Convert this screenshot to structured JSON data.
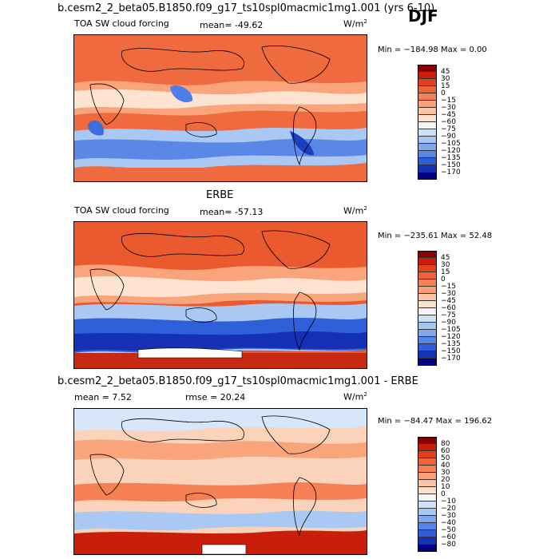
{
  "season": "DJF",
  "panels": [
    {
      "id": "model",
      "title": "b.cesm2_2_beta05.B1850.f09_g17_ts10spl0macmic1mg1.001 (yrs 6-10)",
      "field": "TOA SW cloud forcing",
      "stat1": "mean=  -49.62",
      "stat2": "",
      "units": "W/m",
      "units_sup": "2",
      "minmax": "Min = −184.98  Max =    0.00",
      "levels": [
        "45",
        "30",
        "15",
        "0",
        "−15",
        "−30",
        "−45",
        "−60",
        "−75",
        "−90",
        "−105",
        "−120",
        "−135",
        "−150",
        "−170"
      ],
      "colors": [
        "#8b0000",
        "#c81e0a",
        "#e3401c",
        "#f06335",
        "#f58054",
        "#f9a079",
        "#fbc2a3",
        "#fde0cc",
        "#f5f5f5",
        "#cfe1f7",
        "#a7c7f3",
        "#7fa8ee",
        "#5886e8",
        "#2d5ed8",
        "#1433b8",
        "#000080"
      ]
    },
    {
      "id": "obs",
      "title": "ERBE",
      "field": "TOA SW cloud forcing",
      "stat1": "mean=  -57.13",
      "stat2": "",
      "units": "W/m",
      "units_sup": "2",
      "minmax": "Min = −235.61  Max =  52.48",
      "levels": [
        "45",
        "30",
        "15",
        "0",
        "−15",
        "−30",
        "−45",
        "−60",
        "−75",
        "−90",
        "−105",
        "−120",
        "−135",
        "−150",
        "−170"
      ],
      "colors": [
        "#8b0000",
        "#c81e0a",
        "#e3401c",
        "#f06335",
        "#f58054",
        "#f9a079",
        "#fbc2a3",
        "#fde0cc",
        "#f5f5f5",
        "#cfe1f7",
        "#a7c7f3",
        "#7fa8ee",
        "#5886e8",
        "#2d5ed8",
        "#1433b8",
        "#000080"
      ]
    },
    {
      "id": "diff",
      "title": "b.cesm2_2_beta05.B1850.f09_g17_ts10spl0macmic1mg1.001 - ERBE",
      "field": "",
      "stat1": "mean =    7.52",
      "stat2": "rmse =   20.24",
      "units": "W/m",
      "units_sup": "2",
      "minmax": "Min = −84.47  Max = 196.62",
      "levels": [
        "80",
        "60",
        "50",
        "40",
        "30",
        "20",
        "10",
        "0",
        "−10",
        "−20",
        "−30",
        "−40",
        "−50",
        "−60",
        "−80"
      ],
      "colors": [
        "#8b0000",
        "#c81e0a",
        "#e3401c",
        "#f06335",
        "#f58054",
        "#f9a079",
        "#fbc2a3",
        "#fde0cc",
        "#f5f5f5",
        "#cfe1f7",
        "#a7c7f3",
        "#7fa8ee",
        "#5886e8",
        "#2d5ed8",
        "#1433b8",
        "#000080"
      ]
    }
  ],
  "chart_data": [
    {
      "type": "heatmap",
      "title": "b.cesm2_2_beta05.B1850.f09_g17_ts10spl0macmic1mg1.001 (yrs 6-10)",
      "subtitle": "TOA SW cloud forcing",
      "units": "W/m2",
      "mean": -49.62,
      "min": -184.98,
      "max": 0.0,
      "contour_levels": [
        45,
        30,
        15,
        0,
        -15,
        -30,
        -45,
        -60,
        -75,
        -90,
        -105,
        -120,
        -135,
        -150,
        -170
      ]
    },
    {
      "type": "heatmap",
      "title": "ERBE",
      "subtitle": "TOA SW cloud forcing",
      "units": "W/m2",
      "mean": -57.13,
      "min": -235.61,
      "max": 52.48,
      "contour_levels": [
        45,
        30,
        15,
        0,
        -15,
        -30,
        -45,
        -60,
        -75,
        -90,
        -105,
        -120,
        -135,
        -150,
        -170
      ]
    },
    {
      "type": "heatmap",
      "title": "b.cesm2_2_beta05.B1850.f09_g17_ts10spl0macmic1mg1.001 - ERBE",
      "units": "W/m2",
      "mean": 7.52,
      "rmse": 20.24,
      "min": -84.47,
      "max": 196.62,
      "contour_levels": [
        80,
        60,
        50,
        40,
        30,
        20,
        10,
        0,
        -10,
        -20,
        -30,
        -40,
        -50,
        -60,
        -80
      ]
    }
  ]
}
